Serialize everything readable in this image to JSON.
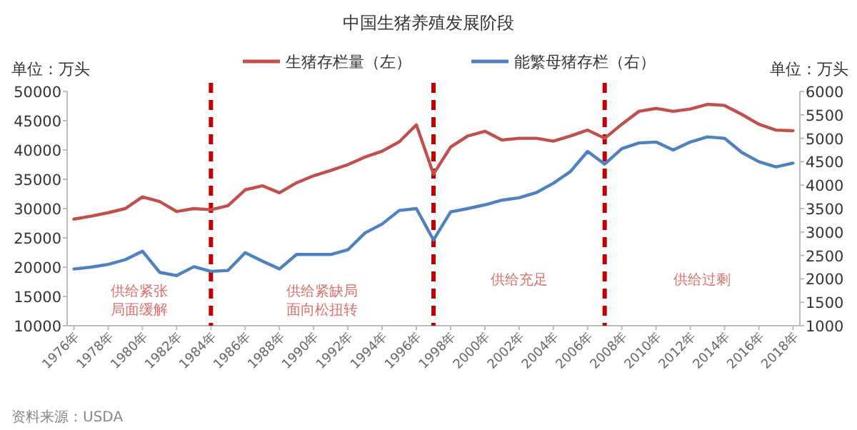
{
  "chart_data": {
    "type": "line",
    "title": "中国生猪养殖发展阶段",
    "ylabel": "单位：万头",
    "y2label": "单位：万头",
    "x": [
      1976,
      1977,
      1978,
      1979,
      1980,
      1981,
      1982,
      1983,
      1984,
      1985,
      1986,
      1987,
      1988,
      1989,
      1990,
      1991,
      1992,
      1993,
      1994,
      1995,
      1996,
      1997,
      1998,
      1999,
      2000,
      2001,
      2002,
      2003,
      2004,
      2005,
      2006,
      2007,
      2008,
      2009,
      2010,
      2011,
      2012,
      2013,
      2014,
      2015,
      2016,
      2017,
      2018
    ],
    "series": [
      {
        "name": "生猪存栏量（左）",
        "color": "#c0504d",
        "values": [
          28200,
          28700,
          29300,
          30000,
          32000,
          31200,
          29500,
          30000,
          29800,
          30500,
          33200,
          33900,
          32700,
          34400,
          35600,
          36500,
          37500,
          38800,
          39800,
          41400,
          44300,
          35900,
          40500,
          42400,
          43200,
          41700,
          42000,
          42000,
          41500,
          42400,
          43400,
          42000,
          44400,
          46600,
          47100,
          46600,
          47000,
          47800,
          47600,
          46100,
          44400,
          43400,
          43300
        ]
      },
      {
        "name": "能繁母猪存栏（右）",
        "color": "#4f81bd",
        "axis": "y2",
        "values": [
          2210,
          2250,
          2310,
          2410,
          2590,
          2140,
          2070,
          2260,
          2160,
          2180,
          2560,
          2380,
          2210,
          2520,
          2520,
          2520,
          2620,
          2980,
          3170,
          3460,
          3500,
          2830,
          3430,
          3500,
          3580,
          3680,
          3730,
          3840,
          4040,
          4290,
          4720,
          4450,
          4780,
          4900,
          4920,
          4750,
          4920,
          5030,
          5000,
          4700,
          4500,
          4390,
          4470
        ]
      }
    ],
    "xlim": [
      1975.6,
      2018.4
    ],
    "xticks": [
      {
        "value": 1976,
        "label": "1976年"
      },
      {
        "value": 1978,
        "label": "1978年"
      },
      {
        "value": 1980,
        "label": "1980年"
      },
      {
        "value": 1982,
        "label": "1982年"
      },
      {
        "value": 1984,
        "label": "1984年"
      },
      {
        "value": 1986,
        "label": "1986年"
      },
      {
        "value": 1988,
        "label": "1988年"
      },
      {
        "value": 1990,
        "label": "1990年"
      },
      {
        "value": 1992,
        "label": "1992年"
      },
      {
        "value": 1994,
        "label": "1994年"
      },
      {
        "value": 1996,
        "label": "1996年"
      },
      {
        "value": 1998,
        "label": "1998年"
      },
      {
        "value": 2000,
        "label": "2000年"
      },
      {
        "value": 2002,
        "label": "2002年"
      },
      {
        "value": 2004,
        "label": "2004年"
      },
      {
        "value": 2006,
        "label": "2006年"
      },
      {
        "value": 2008,
        "label": "2008年"
      },
      {
        "value": 2010,
        "label": "2010年"
      },
      {
        "value": 2012,
        "label": "2012年"
      },
      {
        "value": 2014,
        "label": "2014年"
      },
      {
        "value": 2016,
        "label": "2016年"
      },
      {
        "value": 2018,
        "label": "2018年"
      }
    ],
    "ylim": [
      10000,
      50000
    ],
    "yticks": [
      10000,
      15000,
      20000,
      25000,
      30000,
      35000,
      40000,
      45000,
      50000
    ],
    "y2lim": [
      1000,
      6000
    ],
    "y2ticks": [
      1000,
      1500,
      2000,
      2500,
      3000,
      3500,
      4000,
      4500,
      5000,
      5500,
      6000
    ],
    "ref_lines": [
      {
        "axis": "x",
        "value": 1984,
        "color": "#c00000",
        "line_style": "dashed"
      },
      {
        "axis": "x",
        "value": 1997,
        "color": "#c00000",
        "line_style": "dashed"
      },
      {
        "axis": "x",
        "value": 2007,
        "color": "#c00000",
        "line_style": "dashed"
      }
    ],
    "annotations": [
      "供给紧张局面缓解",
      "供给紧缺局面向松扭转",
      "供给充足",
      "供给过剩",
      "资料来源：USDA"
    ],
    "legend": "top",
    "grid": false
  }
}
